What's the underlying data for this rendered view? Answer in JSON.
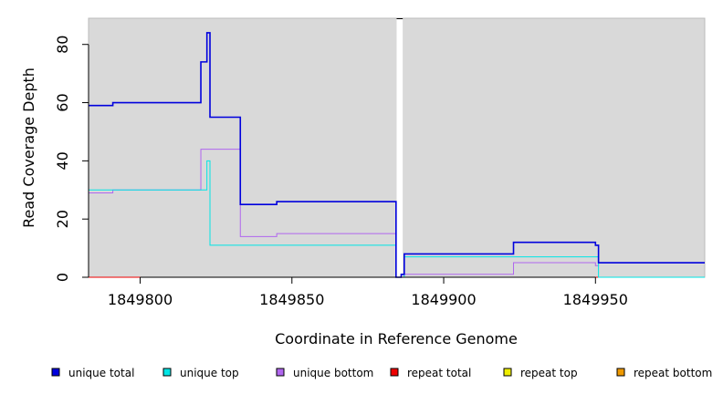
{
  "chart_data": {
    "type": "line",
    "title": "",
    "xlabel": "Coordinate in Reference Genome",
    "ylabel": "Read Coverage Depth",
    "xlim": [
      1849783,
      1849986
    ],
    "ylim": [
      0,
      89
    ],
    "x_ticks": [
      1849800,
      1849850,
      1849900,
      1849950
    ],
    "x_tick_labels": [
      "1849800",
      "1849850",
      "1849900",
      "1849950"
    ],
    "y_ticks": [
      0,
      20,
      40,
      60,
      80
    ],
    "y_tick_labels": [
      "0",
      "20",
      "40",
      "60",
      "80"
    ],
    "gap": [
      1849884.5,
      1849886.5
    ],
    "background": "#d9d9d9",
    "legend_position": "bottom",
    "series": [
      {
        "name": "unique total",
        "color": "#0000dd",
        "width": 1.6,
        "steps": [
          [
            1849783,
            59
          ],
          [
            1849791,
            60
          ],
          [
            1849803,
            60
          ],
          [
            1849820,
            74
          ],
          [
            1849822,
            84
          ],
          [
            1849823,
            55
          ],
          [
            1849833,
            25
          ],
          [
            1849845,
            26
          ],
          [
            1849884.3,
            0
          ],
          [
            1849886,
            1
          ],
          [
            1849887,
            8
          ],
          [
            1849923,
            12
          ],
          [
            1849950,
            11
          ],
          [
            1849951,
            5
          ],
          [
            1849986,
            5
          ]
        ]
      },
      {
        "name": "unique top",
        "color": "#00e5e5",
        "width": 1,
        "steps": [
          [
            1849783,
            30
          ],
          [
            1849791,
            30
          ],
          [
            1849803,
            30
          ],
          [
            1849820,
            30
          ],
          [
            1849822,
            40
          ],
          [
            1849823,
            11
          ],
          [
            1849833,
            11
          ],
          [
            1849845,
            11
          ],
          [
            1849884.3,
            0
          ],
          [
            1849886,
            0
          ],
          [
            1849887,
            7
          ],
          [
            1849923,
            7
          ],
          [
            1849950,
            7
          ],
          [
            1849951,
            0
          ],
          [
            1849986,
            0
          ]
        ]
      },
      {
        "name": "unique bottom",
        "color": "#b066ee",
        "width": 1,
        "steps": [
          [
            1849783,
            29
          ],
          [
            1849791,
            30
          ],
          [
            1849803,
            30
          ],
          [
            1849820,
            44
          ],
          [
            1849822,
            44
          ],
          [
            1849823,
            44
          ],
          [
            1849833,
            14
          ],
          [
            1849845,
            15
          ],
          [
            1849884.3,
            0
          ],
          [
            1849886,
            1
          ],
          [
            1849887,
            1
          ],
          [
            1849923,
            5
          ],
          [
            1849950,
            4
          ],
          [
            1849951,
            5
          ],
          [
            1849986,
            5
          ]
        ]
      },
      {
        "name": "repeat total",
        "color": "#ee0000",
        "width": 1,
        "steps": [
          [
            1849783,
            0
          ],
          [
            1849986,
            0
          ]
        ]
      },
      {
        "name": "repeat top",
        "color": "#eeee00",
        "width": 1,
        "steps": [
          [
            1849783,
            0
          ],
          [
            1849986,
            0
          ]
        ]
      },
      {
        "name": "repeat bottom",
        "color": "#ee9900",
        "width": 1,
        "steps": [
          [
            1849783,
            0
          ],
          [
            1849986,
            0
          ]
        ]
      }
    ]
  }
}
